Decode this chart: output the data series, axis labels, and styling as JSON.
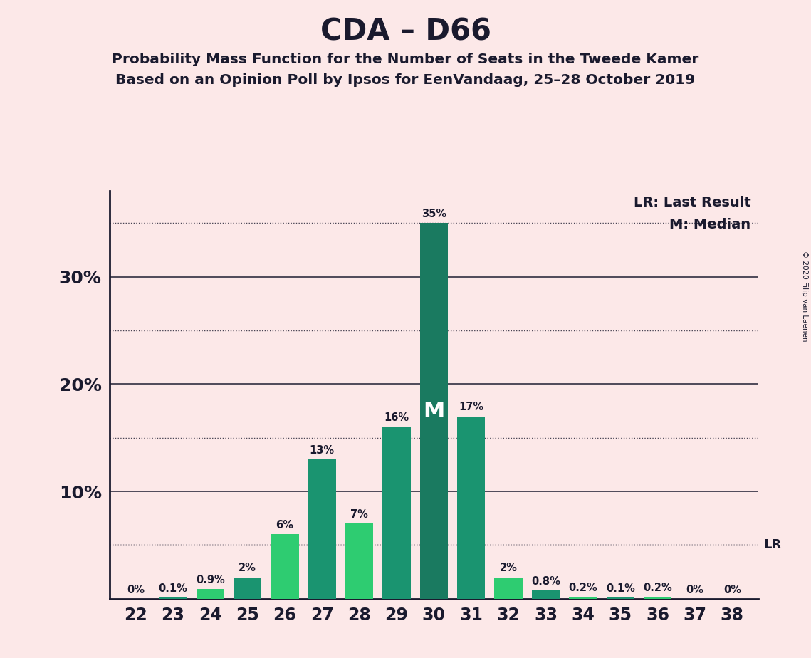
{
  "title": "CDA – D66",
  "subtitle1": "Probability Mass Function for the Number of Seats in the Tweede Kamer",
  "subtitle2": "Based on an Opinion Poll by Ipsos for EenVandaag, 25–28 October 2019",
  "copyright": "© 2020 Filip van Laenen",
  "seats": [
    22,
    23,
    24,
    25,
    26,
    27,
    28,
    29,
    30,
    31,
    32,
    33,
    34,
    35,
    36,
    37,
    38
  ],
  "probabilities": [
    0.0,
    0.1,
    0.9,
    2.0,
    6.0,
    13.0,
    7.0,
    16.0,
    35.0,
    17.0,
    2.0,
    0.8,
    0.2,
    0.1,
    0.2,
    0.0,
    0.0
  ],
  "labels": [
    "0%",
    "0.1%",
    "0.9%",
    "2%",
    "6%",
    "13%",
    "7%",
    "16%",
    "35%",
    "17%",
    "2%",
    "0.8%",
    "0.2%",
    "0.1%",
    "0.2%",
    "0%",
    "0%"
  ],
  "bar_colors": [
    "#2ecc71",
    "#2ecc71",
    "#1a9470",
    "#2ecc71",
    "#1a9470",
    "#2ecc71",
    "#1a9470",
    "#2ecc71",
    "#1a7a60",
    "#2ecc71",
    "#1a9470",
    "#2ecc71",
    "#1a9470",
    "#2ecc71",
    "#1a9470",
    "#2ecc71",
    "#2ecc71"
  ],
  "median_seat": 30,
  "last_result": 5.0,
  "background_color": "#fce8e8",
  "lr_value": 5.0,
  "legend_lr": "LR: Last Result",
  "legend_m": "M: Median",
  "solid_lines": [
    10,
    20,
    30
  ],
  "dotted_lines": [
    5,
    15,
    25,
    35
  ],
  "ylim_max": 38,
  "text_color": "#1a1a2e"
}
